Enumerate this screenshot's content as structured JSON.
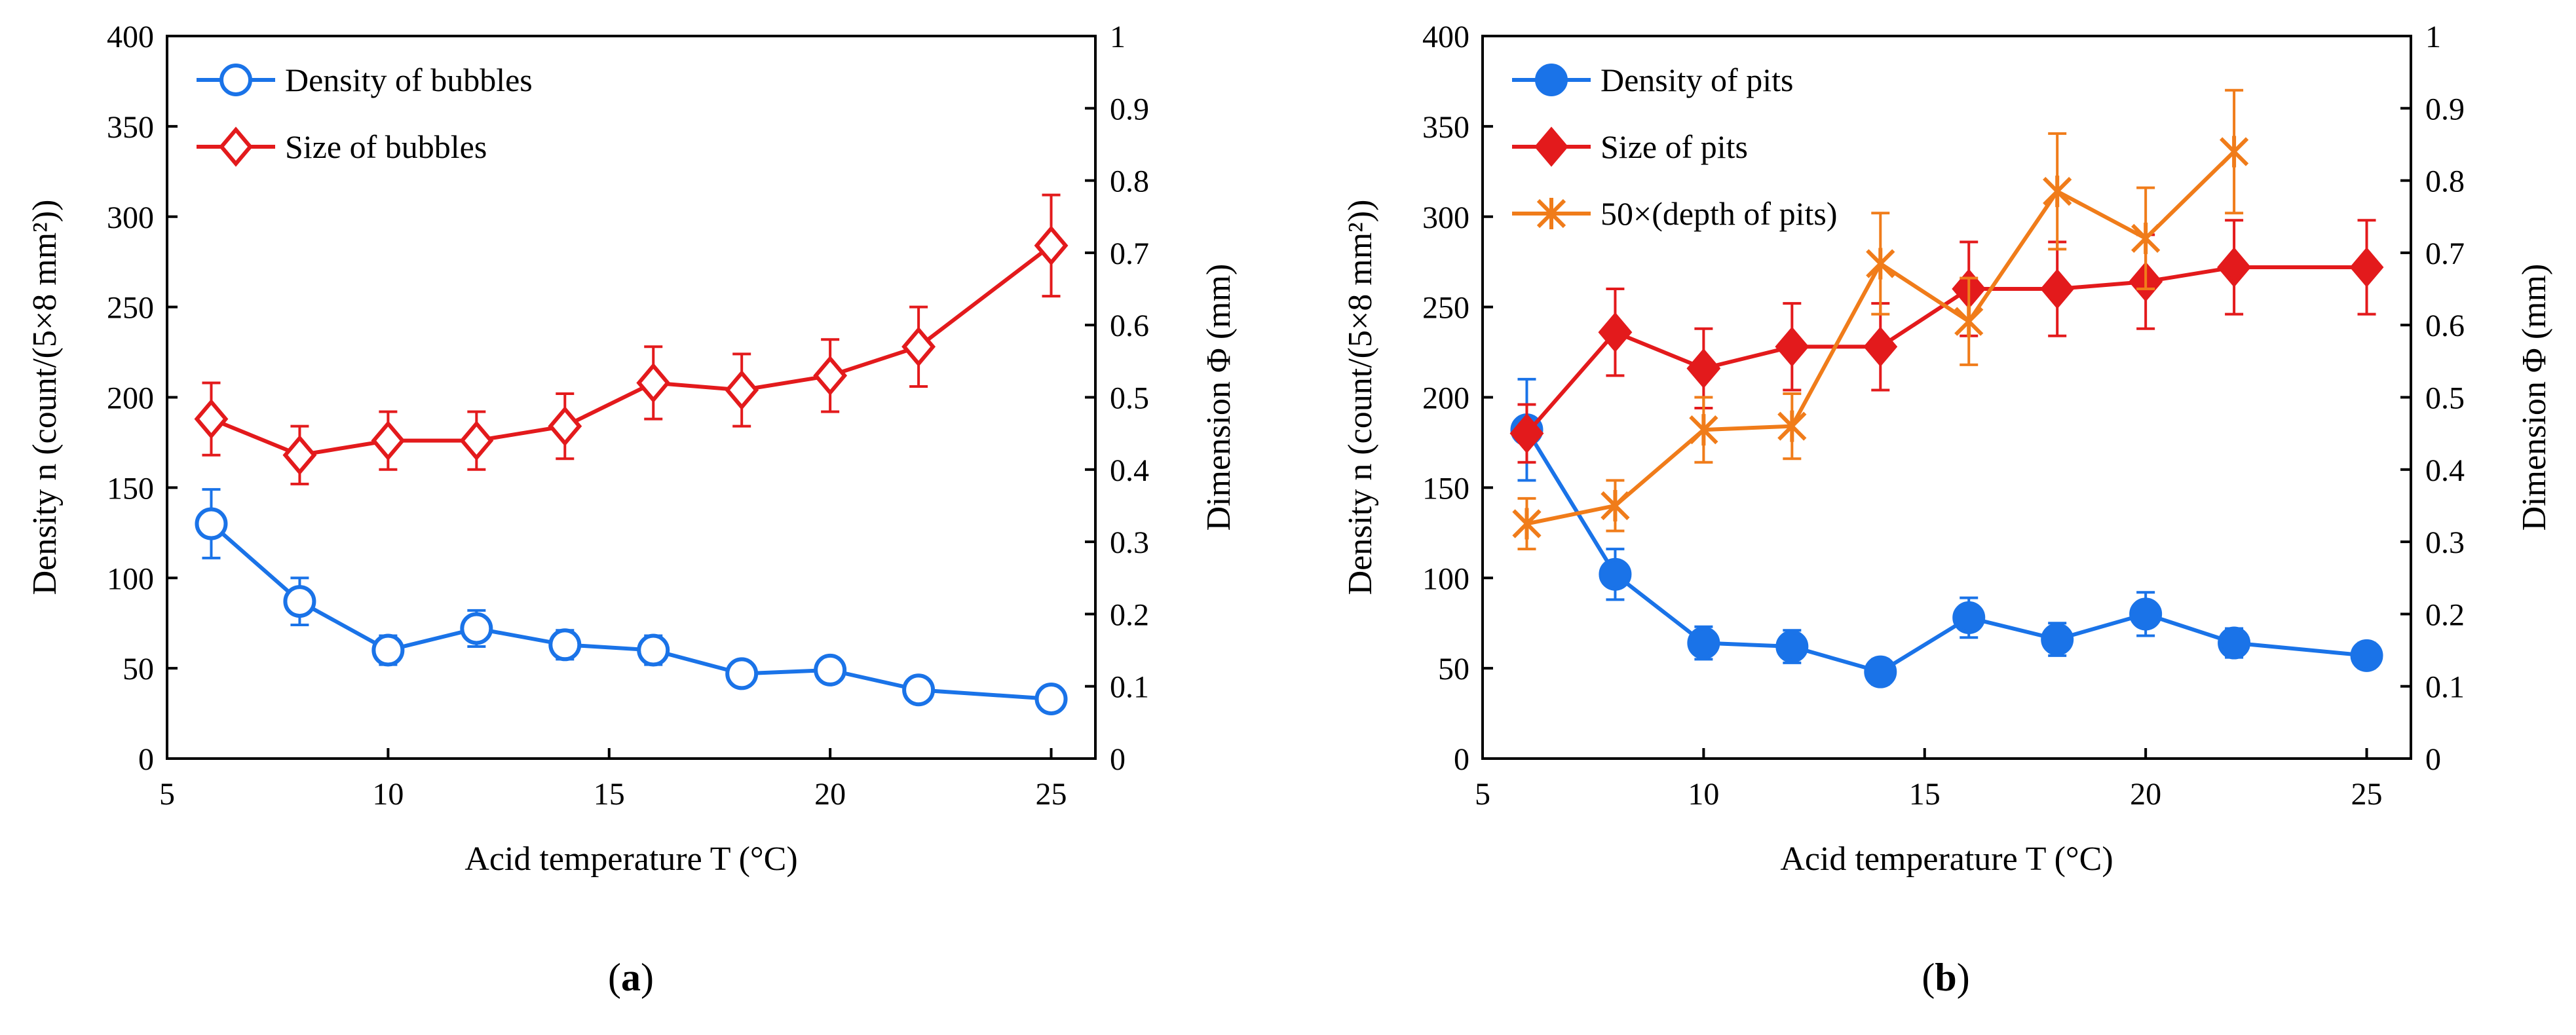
{
  "chart_data": [
    {
      "id": "a",
      "type": "line",
      "caption": "a",
      "xlabel": "Acid temperature T (°C)",
      "ylabel_left": "Density n (count/(5×8 mm²))",
      "ylabel_right": "Dimension Φ (mm)",
      "xlim": [
        5,
        26
      ],
      "ylim_left": [
        0,
        400
      ],
      "ylim_right": [
        0,
        1
      ],
      "xticks": [
        5,
        10,
        15,
        20,
        25
      ],
      "yticks_left": [
        0,
        50,
        100,
        150,
        200,
        250,
        300,
        350,
        400
      ],
      "yticks_right": [
        0,
        0.1,
        0.2,
        0.3,
        0.4,
        0.5,
        0.6,
        0.7,
        0.8,
        0.9,
        1
      ],
      "legend_position": "top-left",
      "series": [
        {
          "name": "Density of bubbles",
          "axis": "left",
          "color": "#1a73e8",
          "marker": "circle-open",
          "x": [
            6,
            8,
            10,
            12,
            14,
            16,
            18,
            20,
            22,
            25
          ],
          "y": [
            130,
            87,
            60,
            72,
            63,
            60,
            47,
            49,
            38,
            33
          ],
          "err": [
            19,
            13,
            8,
            10,
            8,
            8,
            6,
            6,
            3,
            3
          ]
        },
        {
          "name": "Size of bubbles",
          "axis": "right",
          "color": "#e31a1c",
          "marker": "diamond-open",
          "x": [
            6,
            8,
            10,
            12,
            14,
            16,
            18,
            20,
            22,
            25
          ],
          "y": [
            0.47,
            0.42,
            0.44,
            0.44,
            0.46,
            0.52,
            0.51,
            0.53,
            0.57,
            0.71
          ],
          "err": [
            0.05,
            0.04,
            0.04,
            0.04,
            0.045,
            0.05,
            0.05,
            0.05,
            0.055,
            0.07
          ]
        }
      ]
    },
    {
      "id": "b",
      "type": "line",
      "caption": "b",
      "xlabel": "Acid temperature T (°C)",
      "ylabel_left": "Density n (count/(5×8 mm²))",
      "ylabel_right": "Dimension Φ (mm)",
      "xlim": [
        5,
        26
      ],
      "ylim_left": [
        0,
        400
      ],
      "ylim_right": [
        0,
        1
      ],
      "xticks": [
        5,
        10,
        15,
        20,
        25
      ],
      "yticks_left": [
        0,
        50,
        100,
        150,
        200,
        250,
        300,
        350,
        400
      ],
      "yticks_right": [
        0,
        0.1,
        0.2,
        0.3,
        0.4,
        0.5,
        0.6,
        0.7,
        0.8,
        0.9,
        1
      ],
      "legend_position": "top-left",
      "series": [
        {
          "name": "Density of pits",
          "axis": "left",
          "color": "#1a73e8",
          "marker": "circle-filled",
          "x": [
            6,
            8,
            10,
            12,
            14,
            16,
            18,
            20,
            22,
            25
          ],
          "y": [
            182,
            102,
            64,
            62,
            48,
            78,
            66,
            80,
            64,
            57
          ],
          "err": [
            28,
            14,
            9,
            9,
            7,
            11,
            9,
            12,
            8,
            7
          ]
        },
        {
          "name": "Size of pits",
          "axis": "right",
          "color": "#e31a1c",
          "marker": "diamond-filled",
          "x": [
            6,
            8,
            10,
            12,
            14,
            16,
            18,
            20,
            22,
            25
          ],
          "y": [
            0.45,
            0.59,
            0.54,
            0.57,
            0.57,
            0.65,
            0.65,
            0.66,
            0.68,
            0.68
          ],
          "err": [
            0.04,
            0.06,
            0.055,
            0.06,
            0.06,
            0.065,
            0.065,
            0.065,
            0.065,
            0.065
          ]
        },
        {
          "name": "50×(depth of pits)",
          "axis": "right",
          "color": "#f07c1a",
          "marker": "star",
          "x": [
            6,
            8,
            10,
            12,
            14,
            16,
            18,
            20,
            22
          ],
          "y": [
            0.325,
            0.35,
            0.455,
            0.46,
            0.685,
            0.605,
            0.785,
            0.72,
            0.84
          ],
          "err": [
            0.035,
            0.035,
            0.045,
            0.045,
            0.07,
            0.06,
            0.08,
            0.07,
            0.085
          ]
        }
      ]
    }
  ]
}
